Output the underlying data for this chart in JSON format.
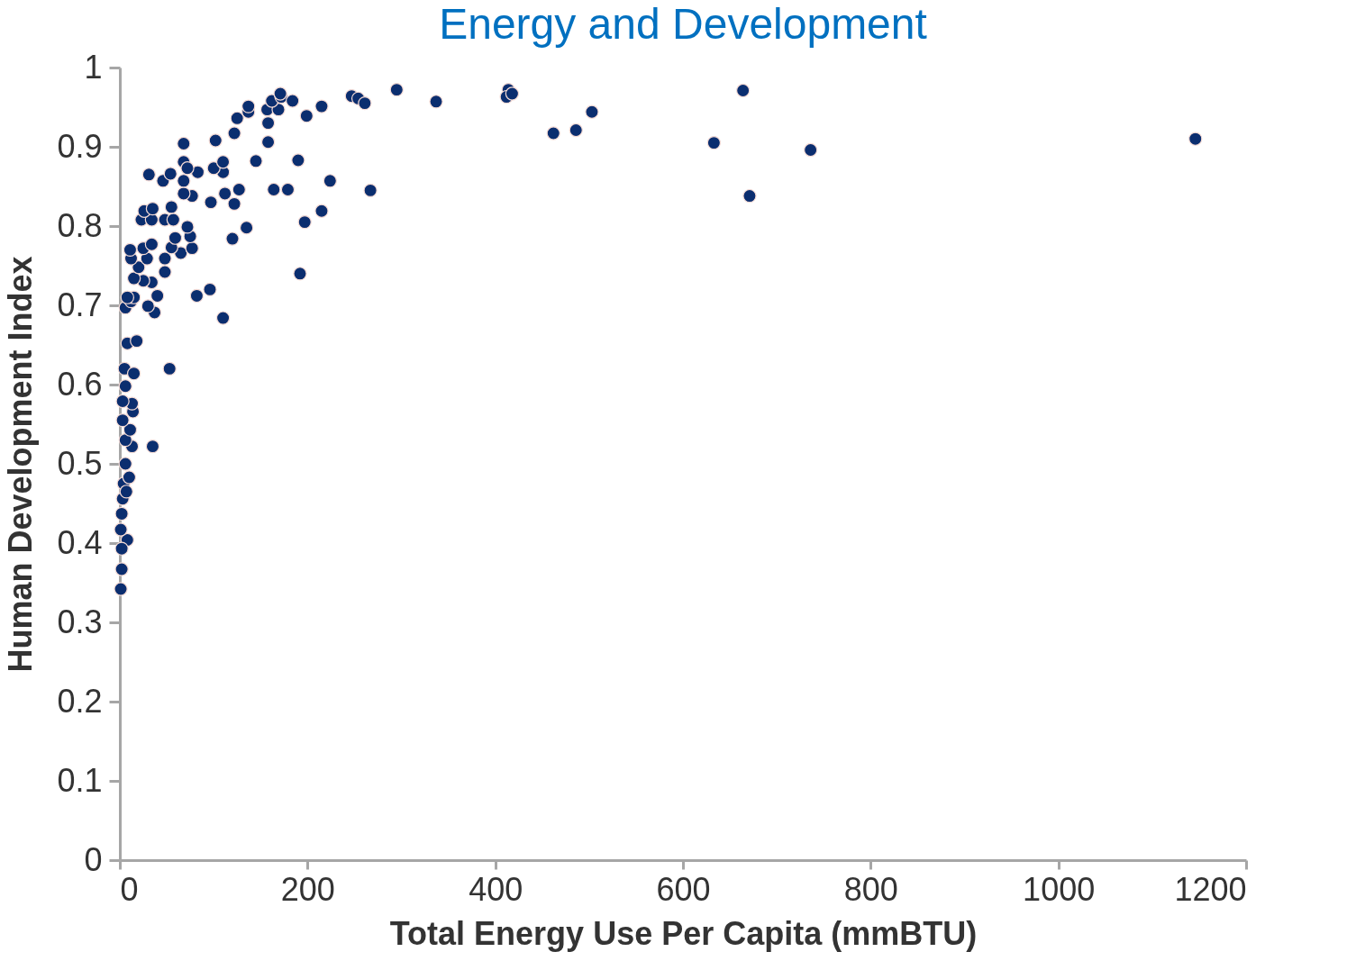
{
  "chart_data": {
    "type": "scatter",
    "title": "Energy and Development",
    "xlabel": "Total Energy Use Per Capita (mmBTU)",
    "ylabel": "Human Development Index",
    "xlim": [
      0,
      1200
    ],
    "xticks": [
      0,
      200,
      400,
      600,
      800,
      1000,
      1200
    ],
    "ylim": [
      0,
      1
    ],
    "yticks": [
      0,
      0.1,
      0.2,
      0.3,
      0.4,
      0.5,
      0.6,
      0.7,
      0.8,
      0.9,
      1
    ],
    "grid": false,
    "legend": false,
    "marker": "circle",
    "series": [
      {
        "color": "#0b2e6f",
        "x": [
          1,
          2,
          8,
          2,
          1,
          2,
          3,
          4,
          7,
          10,
          6,
          13,
          35,
          6,
          11,
          3,
          14,
          13,
          3,
          6,
          5,
          15,
          53,
          8,
          18,
          6,
          12,
          15,
          8,
          37,
          30,
          40,
          82,
          96,
          110,
          34,
          25,
          15,
          48,
          192,
          20,
          12,
          29,
          48,
          11,
          25,
          34,
          65,
          77,
          55,
          59,
          75,
          120,
          72,
          135,
          197,
          215,
          23,
          34,
          48,
          57,
          26,
          35,
          55,
          97,
          122,
          112,
          127,
          77,
          68,
          164,
          179,
          267,
          224,
          68,
          46,
          31,
          54,
          83,
          110,
          100,
          110,
          68,
          145,
          190,
          68,
          102,
          158,
          122,
          462,
          486,
          633,
          736,
          1146,
          671,
          158,
          125,
          199,
          137,
          503,
          137,
          157,
          169,
          215,
          162,
          172,
          184,
          171,
          247,
          254,
          261,
          337,
          295,
          414,
          412,
          418,
          664,
          72
        ],
        "values": [
          0.342,
          0.367,
          0.404,
          0.393,
          0.417,
          0.437,
          0.456,
          0.475,
          0.465,
          0.483,
          0.5,
          0.522,
          0.522,
          0.53,
          0.543,
          0.555,
          0.566,
          0.576,
          0.579,
          0.598,
          0.62,
          0.614,
          0.62,
          0.652,
          0.655,
          0.697,
          0.705,
          0.71,
          0.71,
          0.691,
          0.699,
          0.712,
          0.712,
          0.72,
          0.684,
          0.729,
          0.731,
          0.734,
          0.742,
          0.74,
          0.748,
          0.759,
          0.759,
          0.759,
          0.77,
          0.772,
          0.777,
          0.766,
          0.772,
          0.773,
          0.785,
          0.787,
          0.784,
          0.799,
          0.798,
          0.805,
          0.819,
          0.808,
          0.808,
          0.808,
          0.808,
          0.819,
          0.822,
          0.824,
          0.83,
          0.828,
          0.841,
          0.846,
          0.838,
          0.841,
          0.846,
          0.846,
          0.845,
          0.857,
          0.857,
          0.857,
          0.865,
          0.866,
          0.868,
          0.868,
          0.873,
          0.881,
          0.881,
          0.882,
          0.883,
          0.904,
          0.908,
          0.906,
          0.917,
          0.917,
          0.921,
          0.905,
          0.896,
          0.91,
          0.838,
          0.93,
          0.936,
          0.939,
          0.944,
          0.944,
          0.951,
          0.947,
          0.947,
          0.951,
          0.958,
          0.963,
          0.958,
          0.967,
          0.964,
          0.961,
          0.955,
          0.957,
          0.972,
          0.972,
          0.963,
          0.967,
          0.971,
          0.873
        ]
      }
    ]
  }
}
